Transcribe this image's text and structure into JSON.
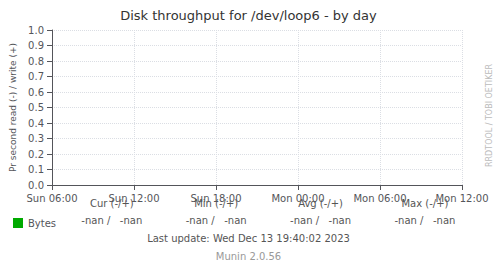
{
  "chart_data": {
    "type": "line",
    "title": "Disk throughput for /dev/loop6 - by day",
    "ylabel": "Pr second read (-) / write (+)",
    "categories": [
      "Sun 06:00",
      "Sun 12:00",
      "Sun 18:00",
      "Mon 00:00",
      "Mon 06:00",
      "Mon 12:00"
    ],
    "series": [
      {
        "name": "Bytes",
        "color": "#00aa00",
        "values": [
          null,
          null,
          null,
          null,
          null,
          null
        ]
      }
    ],
    "ylim": [
      0.0,
      1.0
    ],
    "yticks": [
      {
        "value": 0.0,
        "label": "0.0"
      },
      {
        "value": 0.1,
        "label": "0.1"
      },
      {
        "value": 0.2,
        "label": "0.2"
      },
      {
        "value": 0.3,
        "label": "0.3"
      },
      {
        "value": 0.4,
        "label": "0.4"
      },
      {
        "value": 0.5,
        "label": "0.5"
      },
      {
        "value": 0.6,
        "label": "0.6"
      },
      {
        "value": 0.7,
        "label": "0.7"
      },
      {
        "value": 0.8,
        "label": "0.8"
      },
      {
        "value": 0.9,
        "label": "0.9"
      },
      {
        "value": 1.0,
        "label": "1.0"
      }
    ],
    "grid": true,
    "legend": "bottom",
    "annotations": [
      "Cur (-/+)",
      "Min (-/+)",
      "Avg (-/+)",
      "Max (-/+)",
      "-nan /   -nan",
      "-nan /   -nan",
      "-nan /   -nan",
      "-nan /   -nan",
      "Last update: Wed Dec 13 19:40:02 2023",
      "Munin 2.0.56",
      "RRDTOOL / TOBI OETIKER"
    ]
  }
}
